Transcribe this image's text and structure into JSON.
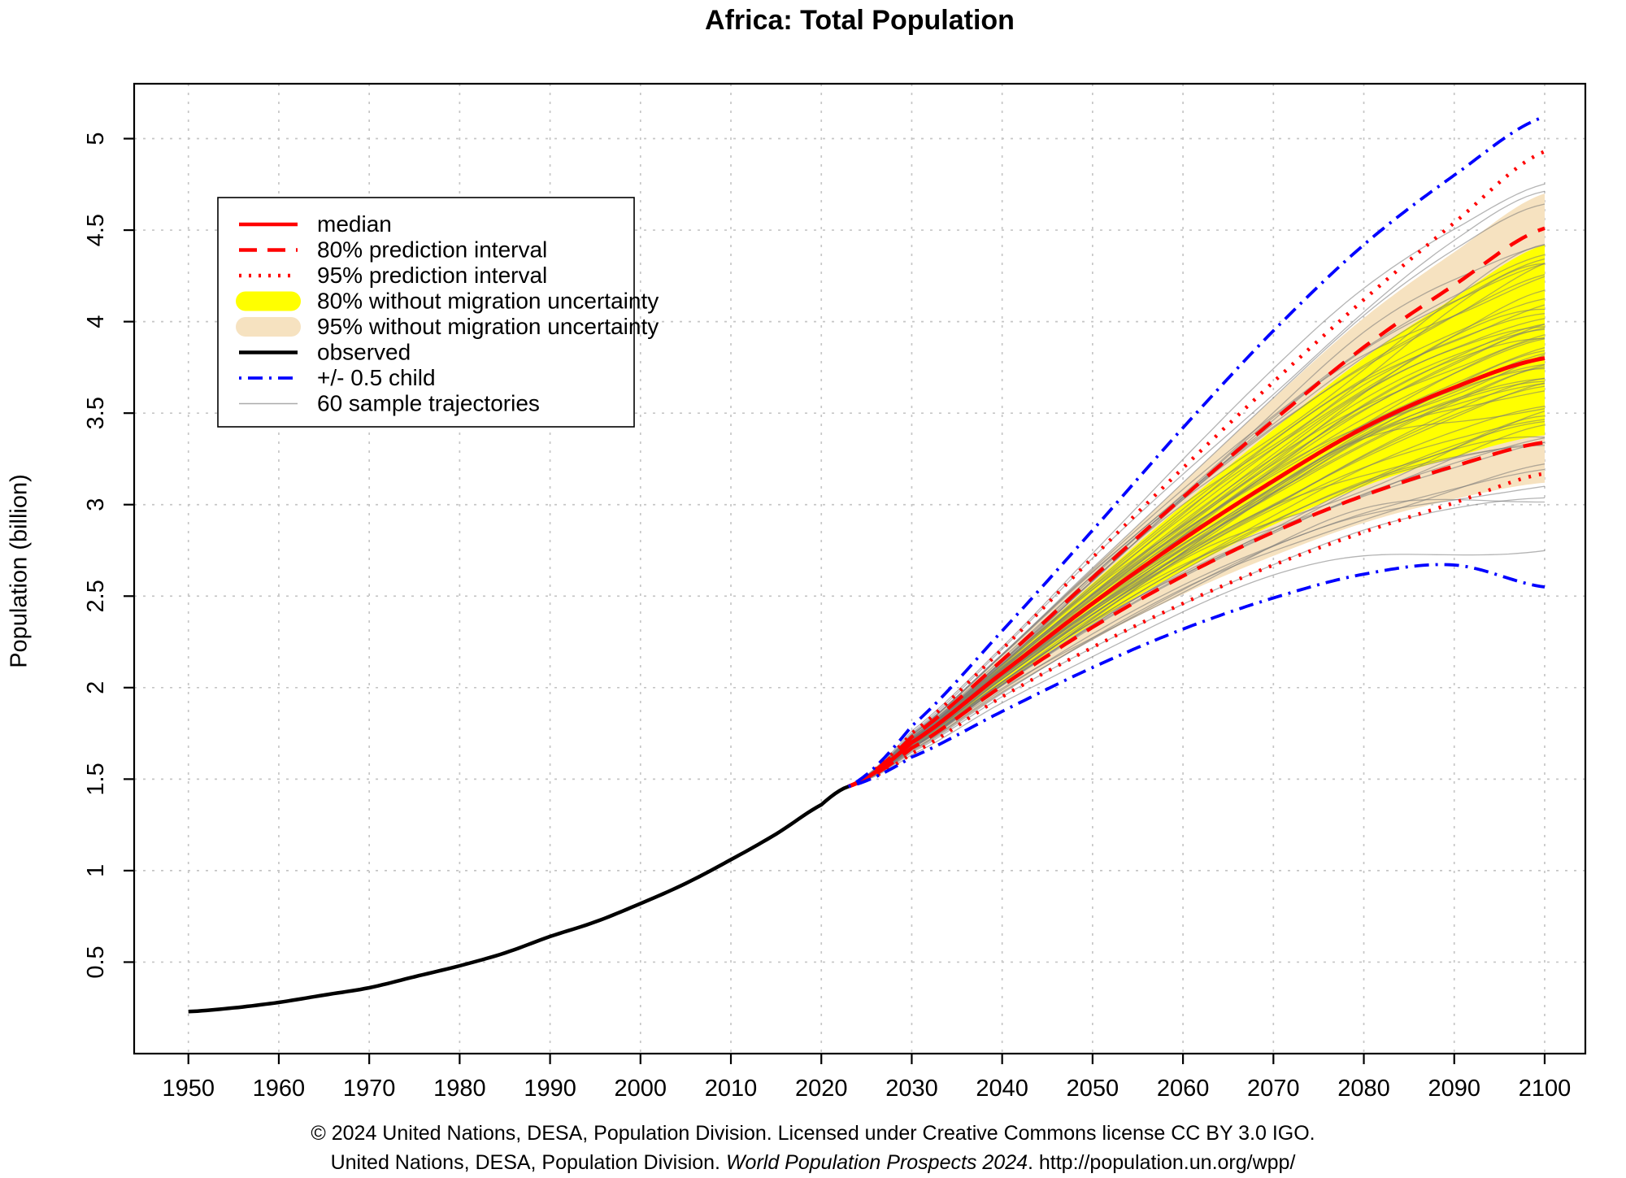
{
  "title": "Africa: Total Population",
  "y_axis_label": "Population (billion)",
  "footer": {
    "line1": "© 2024 United Nations, DESA, Population Division. Licensed under Creative Commons license CC BY 3.0 IGO.",
    "line2_prefix": "United Nations, DESA, Population Division. ",
    "line2_italic": "World Population Prospects 2024",
    "line2_suffix": ". http://population.un.org/wpp/"
  },
  "chart_data": {
    "type": "line",
    "title": "Africa: Total Population",
    "xlabel": "",
    "ylabel": "Population (billion)",
    "xlim": [
      1944,
      2104.5
    ],
    "ylim": [
      0,
      5.3
    ],
    "grid": true,
    "legend_position": "upper-left-inside",
    "x_ticks": [
      1950,
      1960,
      1970,
      1980,
      1990,
      2000,
      2010,
      2020,
      2030,
      2040,
      2050,
      2060,
      2070,
      2080,
      2090,
      2100
    ],
    "y_ticks": [
      0.5,
      1,
      1.5,
      2,
      2.5,
      3,
      3.5,
      4,
      4.5,
      5
    ],
    "y_tick_labels": [
      "0.5",
      "1",
      "1.5",
      "2",
      "2.5",
      "3",
      "3.5",
      "4",
      "4.5",
      "5"
    ],
    "colors": {
      "median": "#FF0000",
      "interval": "#FF0000",
      "band80": "#FFFF00",
      "band95": "#F6E2C0",
      "observed": "#000000",
      "child": "#0000FF",
      "trajectory": "#777777",
      "grid": "#C6C6C6"
    },
    "legend": [
      {
        "label": "median",
        "style": "solid",
        "color": "#FF0000"
      },
      {
        "label": "80% prediction interval",
        "style": "dashed",
        "color": "#FF0000"
      },
      {
        "label": "95% prediction interval",
        "style": "dotted",
        "color": "#FF0000"
      },
      {
        "label": "80% without migration uncertainty",
        "style": "band",
        "color": "#FFFF00"
      },
      {
        "label": "95% without migration uncertainty",
        "style": "band",
        "color": "#F6E2C0"
      },
      {
        "label": "observed",
        "style": "solid",
        "color": "#000000"
      },
      {
        "label": "+/- 0.5 child",
        "style": "dashdot",
        "color": "#0000FF"
      },
      {
        "label": "60 sample trajectories",
        "style": "thin",
        "color": "#AAAAAA"
      }
    ],
    "observed": {
      "x": [
        1950,
        1955,
        1960,
        1965,
        1970,
        1975,
        1980,
        1985,
        1990,
        1995,
        2000,
        2005,
        2010,
        2015,
        2020,
        2023
      ],
      "y": [
        0.23,
        0.25,
        0.28,
        0.32,
        0.36,
        0.42,
        0.48,
        0.55,
        0.64,
        0.72,
        0.82,
        0.93,
        1.06,
        1.2,
        1.36,
        1.46
      ]
    },
    "projection_years": [
      2023,
      2030,
      2040,
      2050,
      2060,
      2070,
      2080,
      2090,
      2100
    ],
    "series": [
      {
        "name": "median",
        "values": [
          1.46,
          1.7,
          2.08,
          2.46,
          2.81,
          3.13,
          3.42,
          3.64,
          3.8
        ]
      },
      {
        "name": "pi80_upper",
        "values": [
          1.46,
          1.73,
          2.15,
          2.6,
          3.04,
          3.46,
          3.86,
          4.2,
          4.51
        ]
      },
      {
        "name": "pi80_lower",
        "values": [
          1.46,
          1.67,
          2.01,
          2.33,
          2.61,
          2.85,
          3.05,
          3.21,
          3.34
        ]
      },
      {
        "name": "pi95_upper",
        "values": [
          1.46,
          1.75,
          2.21,
          2.71,
          3.2,
          3.67,
          4.12,
          4.54,
          4.93
        ]
      },
      {
        "name": "pi95_lower",
        "values": [
          1.46,
          1.64,
          1.95,
          2.22,
          2.46,
          2.67,
          2.85,
          3.01,
          3.17
        ]
      },
      {
        "name": "child_upper",
        "values": [
          1.46,
          1.79,
          2.31,
          2.86,
          3.42,
          3.95,
          4.42,
          4.8,
          5.12
        ]
      },
      {
        "name": "child_lower",
        "values": [
          1.46,
          1.62,
          1.87,
          2.11,
          2.32,
          2.49,
          2.62,
          2.67,
          2.55
        ]
      },
      {
        "name": "nomig80_upper",
        "values": [
          1.46,
          1.72,
          2.13,
          2.57,
          3.0,
          3.41,
          3.8,
          4.13,
          4.42
        ]
      },
      {
        "name": "nomig80_lower",
        "values": [
          1.46,
          1.68,
          2.02,
          2.35,
          2.64,
          2.89,
          3.1,
          3.26,
          3.38
        ]
      },
      {
        "name": "nomig95_upper",
        "values": [
          1.46,
          1.74,
          2.18,
          2.65,
          3.12,
          3.58,
          4.02,
          4.38,
          4.7
        ]
      },
      {
        "name": "nomig95_lower",
        "values": [
          1.46,
          1.65,
          1.97,
          2.26,
          2.51,
          2.72,
          2.9,
          3.03,
          3.12
        ]
      }
    ],
    "sample_trajectories": {
      "count": 60
    }
  }
}
